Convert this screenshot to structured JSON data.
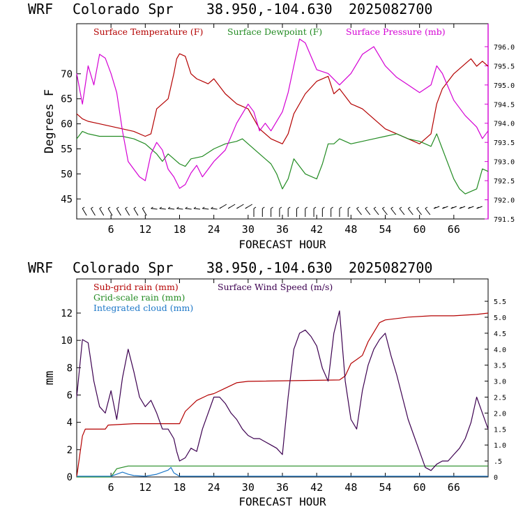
{
  "panels": [
    {
      "id": "top",
      "title": {
        "model": "WRF",
        "station": "Colorado Spr",
        "coords": "38.950,-104.630",
        "date": "2025082700"
      },
      "xlabel": "FORECAST HOUR",
      "ylabel_left": "Degrees F",
      "legend": [
        {
          "label": "Surface Temperature (F)",
          "color": "#b40000"
        },
        {
          "label": "Surface Dewpoint (F)",
          "color": "#228b22"
        },
        {
          "label": "Surface Pressure (mb)",
          "color": "#d400d4"
        }
      ]
    },
    {
      "id": "bottom",
      "title": {
        "model": "WRF",
        "station": "Colorado Spr",
        "coords": "38.950,-104.630",
        "date": "2025082700"
      },
      "xlabel": "FORECAST HOUR",
      "ylabel_left": "mm",
      "legend": [
        {
          "label": "Sub-grid rain (mm)",
          "color": "#b40000"
        },
        {
          "label": "Grid-scale rain (mm)",
          "color": "#228b22"
        },
        {
          "label": "Integrated cloud (mm)",
          "color": "#1e78c8"
        },
        {
          "label": "Surface Wind Speed (m/s)",
          "color": "#3c0050"
        }
      ]
    }
  ],
  "chart_data": [
    {
      "type": "line",
      "title": "WRF  Colorado Spr  38.950,-104.630  2025082700",
      "xlabel": "FORECAST HOUR",
      "ylabel": "Degrees F",
      "xlim": [
        0,
        72
      ],
      "ylim": [
        41,
        80
      ],
      "y2lim": [
        791.5,
        796.6
      ],
      "x_ticks": [
        "6",
        "12",
        "18",
        "24",
        "30",
        "36",
        "42",
        "48",
        "54",
        "60",
        "66"
      ],
      "x_tick_values": [
        6,
        12,
        18,
        24,
        30,
        36,
        42,
        48,
        54,
        60,
        66
      ],
      "y_ticks": [
        "45",
        "50",
        "55",
        "60",
        "65",
        "70"
      ],
      "y_tick_values": [
        45,
        50,
        55,
        60,
        65,
        70
      ],
      "y2_ticks": [
        "791.5",
        "792.0",
        "792.5",
        "793.0",
        "793.5",
        "794.0",
        "794.5",
        "795.0",
        "795.5",
        "796.0"
      ],
      "y2_tick_values": [
        791.5,
        792.0,
        792.5,
        793.0,
        793.5,
        794.0,
        794.5,
        795.0,
        795.5,
        796.0
      ],
      "series": [
        {
          "name": "Surface Temperature (F)",
          "axis": "left",
          "color": "#b40000",
          "x": [
            0,
            1,
            2,
            4,
            6,
            8,
            10,
            12,
            13,
            14,
            15,
            16,
            17,
            17.5,
            18,
            19,
            20,
            21,
            22,
            23,
            24,
            26,
            28,
            30,
            32,
            34,
            36,
            37,
            38,
            40,
            42,
            44,
            45,
            46,
            48,
            50,
            52,
            54,
            56,
            58,
            60,
            62,
            63,
            64,
            66,
            68,
            69,
            70,
            71,
            72
          ],
          "y": [
            62,
            61,
            60.5,
            60,
            59.5,
            59,
            58.5,
            57.5,
            58,
            63,
            64,
            65,
            70,
            73,
            74,
            73.5,
            70,
            69,
            68.5,
            68,
            69,
            66,
            64,
            63,
            59,
            57,
            56,
            58,
            62,
            66,
            68.5,
            69.5,
            66,
            67,
            64,
            63,
            61,
            59,
            58,
            57,
            56,
            58,
            64,
            67,
            70,
            72,
            73,
            71.5,
            72.5,
            71.5
          ]
        },
        {
          "name": "Surface Dewpoint (F)",
          "axis": "left",
          "color": "#228b22",
          "x": [
            0,
            1,
            2,
            4,
            6,
            8,
            10,
            12,
            13,
            14,
            15,
            16,
            17,
            18,
            19,
            20,
            22,
            24,
            26,
            28,
            29,
            30,
            32,
            34,
            35,
            36,
            37,
            38,
            40,
            42,
            43,
            44,
            45,
            46,
            48,
            50,
            52,
            54,
            56,
            58,
            60,
            62,
            63,
            64,
            66,
            67,
            68,
            70,
            71,
            72
          ],
          "y": [
            57,
            58.5,
            58,
            57.5,
            57.5,
            57.5,
            57,
            56,
            55,
            54,
            52.5,
            54,
            53,
            52,
            51.5,
            53,
            53.5,
            55,
            56,
            56.5,
            57,
            56,
            54,
            52,
            50,
            47,
            49,
            53,
            50,
            49,
            52,
            56,
            56,
            57,
            56,
            56.5,
            57,
            57.5,
            58,
            57,
            56.5,
            55.5,
            58,
            55,
            49,
            47,
            46,
            47,
            51,
            50.5
          ]
        },
        {
          "name": "Surface Pressure (mb)",
          "axis": "right",
          "color": "#d400d4",
          "x": [
            0,
            1,
            2,
            3,
            4,
            5,
            6,
            7,
            8,
            9,
            10,
            11,
            12,
            13,
            14,
            15,
            16,
            17,
            18,
            19,
            20,
            21,
            22,
            24,
            26,
            28,
            30,
            31,
            32,
            33,
            34,
            36,
            37,
            38,
            39,
            40,
            42,
            44,
            46,
            48,
            50,
            52,
            54,
            56,
            58,
            60,
            62,
            63,
            64,
            66,
            68,
            70,
            71,
            72
          ],
          "y": [
            795.3,
            794.5,
            795.5,
            795.0,
            795.8,
            795.7,
            795.3,
            794.8,
            793.8,
            793.0,
            792.8,
            792.6,
            792.5,
            793.2,
            793.5,
            793.3,
            792.8,
            792.6,
            792.3,
            792.4,
            792.7,
            792.9,
            792.6,
            793.0,
            793.3,
            794.0,
            794.5,
            794.3,
            793.8,
            794.0,
            793.8,
            794.3,
            794.8,
            795.5,
            796.2,
            796.1,
            795.4,
            795.3,
            795.0,
            795.3,
            795.8,
            796.0,
            795.5,
            795.2,
            795.0,
            794.8,
            795.0,
            795.5,
            795.3,
            794.6,
            794.2,
            793.9,
            793.6,
            793.8
          ]
        }
      ],
      "wind_barbs": "row of wind barbs along bottom of panel"
    },
    {
      "type": "line",
      "title": "WRF  Colorado Spr  38.950,-104.630  2025082700",
      "xlabel": "FORECAST HOUR",
      "ylabel": "mm",
      "xlim": [
        0,
        72
      ],
      "ylim": [
        0,
        14.5
      ],
      "y2lim": [
        0,
        6.2
      ],
      "x_ticks": [
        "6",
        "12",
        "18",
        "24",
        "30",
        "36",
        "42",
        "48",
        "54",
        "60",
        "66"
      ],
      "x_tick_values": [
        6,
        12,
        18,
        24,
        30,
        36,
        42,
        48,
        54,
        60,
        66
      ],
      "y_ticks": [
        "0",
        "2",
        "4",
        "6",
        "8",
        "10",
        "12"
      ],
      "y_tick_values": [
        0,
        2,
        4,
        6,
        8,
        10,
        12
      ],
      "y2_ticks": [
        "0",
        ".5",
        "1.0",
        "1.5",
        "2.0",
        "2.5",
        "3.0",
        "3.5",
        "4.0",
        "4.5",
        "5.0",
        "5.5"
      ],
      "y2_tick_values": [
        0,
        0.5,
        1.0,
        1.5,
        2.0,
        2.5,
        3.0,
        3.5,
        4.0,
        4.5,
        5.0,
        5.5
      ],
      "series": [
        {
          "name": "Sub-grid rain (mm)",
          "axis": "left",
          "color": "#b40000",
          "x": [
            0,
            1,
            1.5,
            5,
            5.5,
            10,
            12,
            18,
            19,
            21,
            23,
            24,
            26,
            28,
            30,
            46,
            47,
            48,
            49,
            50,
            51,
            52,
            53,
            54,
            58,
            62,
            66,
            70,
            72
          ],
          "y": [
            0,
            3.0,
            3.5,
            3.5,
            3.8,
            3.9,
            3.9,
            3.9,
            4.8,
            5.6,
            6.0,
            6.1,
            6.5,
            6.9,
            7.0,
            7.1,
            7.4,
            8.3,
            8.6,
            8.9,
            9.9,
            10.6,
            11.3,
            11.5,
            11.7,
            11.8,
            11.8,
            11.9,
            12.0
          ]
        },
        {
          "name": "Grid-scale rain (mm)",
          "axis": "left",
          "color": "#228b22",
          "x": [
            0,
            3,
            6,
            7,
            9,
            12,
            24,
            36,
            48,
            60,
            72
          ],
          "y": [
            0,
            0,
            0,
            0.6,
            0.8,
            0.8,
            0.8,
            0.8,
            0.8,
            0.8,
            0.8
          ]
        },
        {
          "name": "Integrated cloud (mm)",
          "axis": "left",
          "color": "#1e78c8",
          "x": [
            0,
            6,
            7,
            8,
            9,
            10,
            12,
            14,
            16,
            16.5,
            17,
            18,
            24,
            36,
            48,
            60,
            72
          ],
          "y": [
            0.05,
            0.05,
            0.2,
            0.35,
            0.2,
            0.1,
            0.05,
            0.2,
            0.5,
            0.7,
            0.3,
            0.05,
            0.05,
            0.05,
            0.05,
            0.05,
            0.05
          ]
        },
        {
          "name": "Surface Wind Speed (m/s)",
          "axis": "right",
          "color": "#3c0050",
          "x": [
            0,
            1,
            2,
            3,
            4,
            5,
            6,
            7,
            8,
            9,
            10,
            11,
            12,
            13,
            14,
            15,
            16,
            17,
            17.5,
            18,
            19,
            20,
            21,
            22,
            23,
            24,
            25,
            26,
            27,
            28,
            29,
            30,
            31,
            32,
            33,
            34,
            35,
            36,
            37,
            38,
            39,
            40,
            41,
            42,
            43,
            44,
            45,
            46,
            47,
            48,
            49,
            50,
            51,
            52,
            53,
            54,
            55,
            56,
            57,
            58,
            59,
            60,
            61,
            62,
            63,
            64,
            65,
            66,
            67,
            68,
            69,
            70,
            71,
            72
          ],
          "y": [
            2.5,
            4.3,
            4.2,
            3.0,
            2.2,
            2.0,
            2.7,
            1.8,
            3.1,
            4.0,
            3.3,
            2.5,
            2.2,
            2.4,
            2.0,
            1.5,
            1.5,
            1.2,
            0.8,
            0.5,
            0.6,
            0.9,
            0.8,
            1.5,
            2.0,
            2.5,
            2.5,
            2.3,
            2.0,
            1.8,
            1.5,
            1.3,
            1.2,
            1.2,
            1.1,
            1.0,
            0.9,
            0.7,
            2.5,
            4.0,
            4.5,
            4.6,
            4.4,
            4.1,
            3.4,
            3.0,
            4.5,
            5.2,
            3.0,
            1.8,
            1.5,
            2.7,
            3.5,
            4.0,
            4.3,
            4.5,
            3.8,
            3.2,
            2.5,
            1.8,
            1.3,
            0.8,
            0.3,
            0.2,
            0.4,
            0.5,
            0.5,
            0.7,
            0.9,
            1.2,
            1.7,
            2.5,
            2.0,
            1.5
          ]
        }
      ]
    }
  ]
}
